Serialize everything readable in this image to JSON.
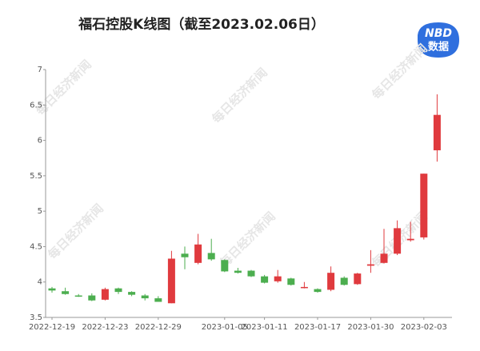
{
  "chart_data": {
    "type": "candlestick",
    "title": "福石控股K线图（截至2023.02.06日）",
    "logo": [
      "NBD",
      "数据"
    ],
    "watermark": "每日经济新闻",
    "categories": [
      "2022-12-19",
      null,
      null,
      null,
      "2022-12-23",
      null,
      null,
      null,
      "2022-12-29",
      null,
      null,
      null,
      null,
      "2023-01-05",
      null,
      null,
      "2023-01-11",
      null,
      null,
      null,
      "2023-01-17",
      null,
      null,
      null,
      "2023-01-30",
      null,
      null,
      null,
      "2023-02-03",
      null
    ],
    "open": [
      3.91,
      3.87,
      3.81,
      3.81,
      3.75,
      3.91,
      3.86,
      3.81,
      3.77,
      3.7,
      4.4,
      4.27,
      4.41,
      4.31,
      4.16,
      4.16,
      4.08,
      4.01,
      4.05,
      3.92,
      3.9,
      3.89,
      4.06,
      3.97,
      4.23,
      4.27,
      4.4,
      4.59,
      4.63,
      5.86
    ],
    "high": [
      3.93,
      3.92,
      3.83,
      3.84,
      3.92,
      3.92,
      3.87,
      3.83,
      3.8,
      4.44,
      4.5,
      4.68,
      4.61,
      4.32,
      4.2,
      4.17,
      4.1,
      4.17,
      4.06,
      4.0,
      3.91,
      4.22,
      4.08,
      4.13,
      4.45,
      4.75,
      4.87,
      4.85,
      5.53,
      6.65
    ],
    "low": [
      3.85,
      3.82,
      3.79,
      3.73,
      3.74,
      3.83,
      3.8,
      3.74,
      3.72,
      3.7,
      4.18,
      4.25,
      4.3,
      4.14,
      4.12,
      4.07,
      3.98,
      3.99,
      3.95,
      3.91,
      3.85,
      3.87,
      3.95,
      3.96,
      4.13,
      4.26,
      4.38,
      4.57,
      4.6,
      5.7
    ],
    "close": [
      3.88,
      3.83,
      3.8,
      3.74,
      3.9,
      3.86,
      3.82,
      3.77,
      3.72,
      4.33,
      4.35,
      4.53,
      4.32,
      4.15,
      4.13,
      4.08,
      3.99,
      4.08,
      3.96,
      3.93,
      3.86,
      4.13,
      3.96,
      4.12,
      4.25,
      4.4,
      4.76,
      4.61,
      5.53,
      6.36
    ],
    "up_color": "#e03a3e",
    "down_color": "#4cae4f",
    "ylim": [
      3.5,
      7
    ],
    "yticks": [
      3.5,
      4,
      4.5,
      5,
      5.5,
      6,
      6.5,
      7
    ],
    "grid": false
  }
}
